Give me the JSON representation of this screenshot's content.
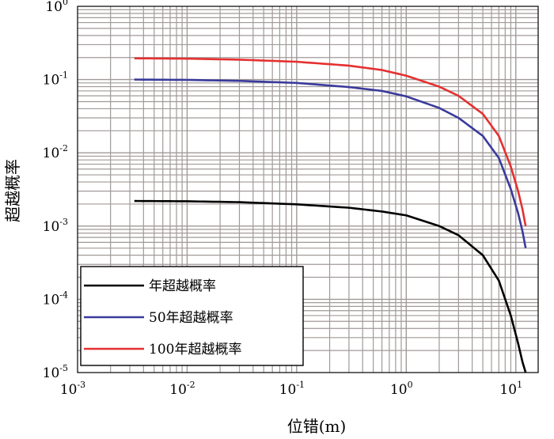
{
  "chart_data": {
    "type": "line",
    "title": "",
    "xlabel": "位错(m)",
    "ylabel": "超越概率",
    "xscale": "log",
    "yscale": "log",
    "xlim": [
      0.001,
      16
    ],
    "ylim": [
      1e-05,
      1
    ],
    "x_ticks": [
      {
        "base": "10",
        "exp": "-3"
      },
      {
        "base": "10",
        "exp": "-2"
      },
      {
        "base": "10",
        "exp": "-1"
      },
      {
        "base": "10",
        "exp": "0"
      },
      {
        "base": "10",
        "exp": "1"
      }
    ],
    "y_ticks": [
      {
        "base": "10",
        "exp": "0"
      },
      {
        "base": "10",
        "exp": "-1"
      },
      {
        "base": "10",
        "exp": "-2"
      },
      {
        "base": "10",
        "exp": "-3"
      },
      {
        "base": "10",
        "exp": "-4"
      },
      {
        "base": "10",
        "exp": "-5"
      }
    ],
    "grid": true,
    "legend_position": "bottom-left",
    "series": [
      {
        "name": "年超越概率",
        "color": "#000000",
        "x": [
          0.0033,
          0.01,
          0.03,
          0.1,
          0.3,
          0.6,
          1.0,
          2.0,
          3.0,
          5.0,
          7.0,
          9.0,
          10.5,
          11.5,
          12.3
        ],
        "y": [
          0.0022,
          0.00218,
          0.00212,
          0.00198,
          0.00178,
          0.00158,
          0.0014,
          0.001,
          0.00075,
          0.0004,
          0.00018,
          6e-05,
          2.5e-05,
          1.4e-05,
          1e-05
        ]
      },
      {
        "name": "50年超越概率",
        "color": "#3a3a9c",
        "x": [
          0.0033,
          0.01,
          0.03,
          0.1,
          0.3,
          0.6,
          1.0,
          2.0,
          3.0,
          5.0,
          7.0,
          9.0,
          10.5,
          11.5,
          12.3
        ],
        "y": [
          0.1,
          0.099,
          0.096,
          0.09,
          0.079,
          0.07,
          0.059,
          0.041,
          0.03,
          0.017,
          0.0085,
          0.0032,
          0.0015,
          0.00085,
          0.0005
        ]
      },
      {
        "name": "100年超越概率",
        "color": "#e53030",
        "x": [
          0.0033,
          0.01,
          0.03,
          0.1,
          0.3,
          0.6,
          1.0,
          2.0,
          3.0,
          5.0,
          7.0,
          9.0,
          10.5,
          11.5,
          12.3
        ],
        "y": [
          0.195,
          0.193,
          0.187,
          0.175,
          0.155,
          0.135,
          0.113,
          0.08,
          0.06,
          0.034,
          0.017,
          0.0065,
          0.003,
          0.0017,
          0.001
        ]
      }
    ]
  }
}
